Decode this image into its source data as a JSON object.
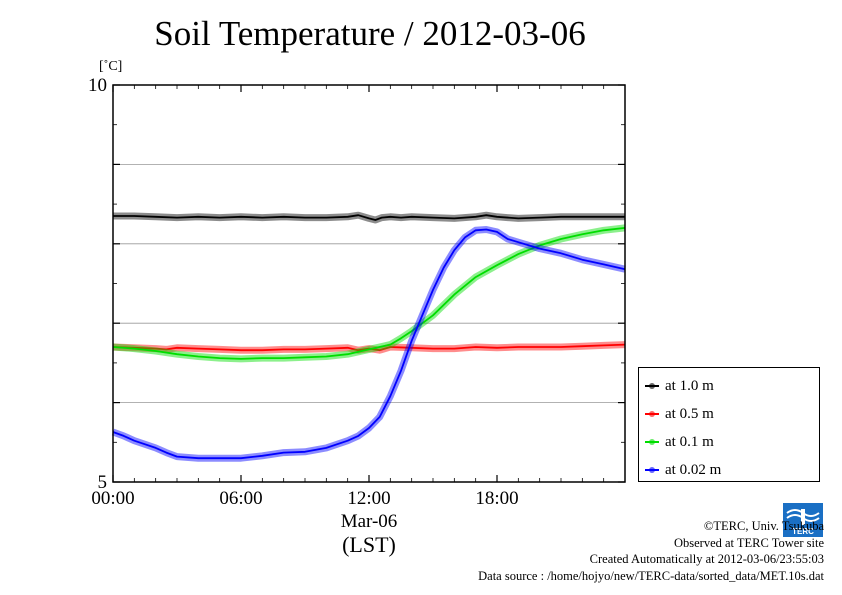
{
  "chart_data": {
    "type": "line",
    "title": "Soil Temperature / 2012-03-06",
    "ylabel": "[˚C]",
    "ylim": [
      5,
      10
    ],
    "y_ticks": [
      {
        "value": 10,
        "label": "10"
      },
      {
        "value": 5,
        "label": "5"
      }
    ],
    "y_grid": [
      6,
      7,
      8,
      9
    ],
    "xlim": [
      0,
      24
    ],
    "x_ticks": [
      {
        "value": 0,
        "label": "00:00"
      },
      {
        "value": 6,
        "label": "06:00"
      },
      {
        "value": 12,
        "label": "12:00"
      },
      {
        "value": 18,
        "label": "18:00"
      }
    ],
    "x_date_label": "Mar-06",
    "x_axis_label": "(LST)",
    "grid": "horizontal",
    "legend_position": "right",
    "series": [
      {
        "name": "at 1.0 m",
        "color": "#000000",
        "points": [
          [
            0,
            8.35
          ],
          [
            1,
            8.35
          ],
          [
            2,
            8.34
          ],
          [
            3,
            8.33
          ],
          [
            4,
            8.34
          ],
          [
            5,
            8.33
          ],
          [
            6,
            8.34
          ],
          [
            7,
            8.33
          ],
          [
            8,
            8.34
          ],
          [
            9,
            8.33
          ],
          [
            10,
            8.33
          ],
          [
            11,
            8.34
          ],
          [
            11.5,
            8.36
          ],
          [
            12,
            8.32
          ],
          [
            12.3,
            8.3
          ],
          [
            12.6,
            8.33
          ],
          [
            13,
            8.34
          ],
          [
            13.5,
            8.33
          ],
          [
            14,
            8.34
          ],
          [
            15,
            8.33
          ],
          [
            16,
            8.32
          ],
          [
            17,
            8.34
          ],
          [
            17.5,
            8.36
          ],
          [
            18,
            8.34
          ],
          [
            19,
            8.32
          ],
          [
            20,
            8.33
          ],
          [
            21,
            8.34
          ],
          [
            22,
            8.34
          ],
          [
            23,
            8.34
          ],
          [
            24,
            8.34
          ]
        ]
      },
      {
        "name": "at 0.5 m",
        "color": "#ff0000",
        "points": [
          [
            0,
            6.7
          ],
          [
            1,
            6.69
          ],
          [
            2,
            6.68
          ],
          [
            2.5,
            6.67
          ],
          [
            3,
            6.69
          ],
          [
            4,
            6.68
          ],
          [
            5,
            6.67
          ],
          [
            6,
            6.66
          ],
          [
            7,
            6.66
          ],
          [
            8,
            6.67
          ],
          [
            9,
            6.67
          ],
          [
            10,
            6.68
          ],
          [
            11,
            6.69
          ],
          [
            11.5,
            6.66
          ],
          [
            12,
            6.68
          ],
          [
            12.5,
            6.66
          ],
          [
            13,
            6.7
          ],
          [
            14,
            6.69
          ],
          [
            15,
            6.68
          ],
          [
            16,
            6.68
          ],
          [
            17,
            6.7
          ],
          [
            18,
            6.69
          ],
          [
            19,
            6.7
          ],
          [
            20,
            6.7
          ],
          [
            21,
            6.7
          ],
          [
            22,
            6.71
          ],
          [
            23,
            6.72
          ],
          [
            24,
            6.73
          ]
        ]
      },
      {
        "name": "at 0.1 m",
        "color": "#00dd00",
        "points": [
          [
            0,
            6.7
          ],
          [
            1,
            6.68
          ],
          [
            2,
            6.65
          ],
          [
            3,
            6.61
          ],
          [
            4,
            6.58
          ],
          [
            5,
            6.56
          ],
          [
            6,
            6.55
          ],
          [
            7,
            6.56
          ],
          [
            8,
            6.56
          ],
          [
            9,
            6.57
          ],
          [
            10,
            6.58
          ],
          [
            11,
            6.61
          ],
          [
            12,
            6.67
          ],
          [
            13,
            6.73
          ],
          [
            13.5,
            6.81
          ],
          [
            14,
            6.9
          ],
          [
            15,
            7.1
          ],
          [
            16,
            7.36
          ],
          [
            17,
            7.58
          ],
          [
            18,
            7.73
          ],
          [
            19,
            7.87
          ],
          [
            20,
            7.98
          ],
          [
            21,
            8.06
          ],
          [
            22,
            8.12
          ],
          [
            23,
            8.17
          ],
          [
            24,
            8.2
          ]
        ]
      },
      {
        "name": "at 0.02 m",
        "color": "#0000ff",
        "points": [
          [
            0,
            5.63
          ],
          [
            0.5,
            5.58
          ],
          [
            1,
            5.52
          ],
          [
            2,
            5.43
          ],
          [
            2.5,
            5.37
          ],
          [
            3,
            5.32
          ],
          [
            4,
            5.3
          ],
          [
            5,
            5.3
          ],
          [
            6,
            5.3
          ],
          [
            7,
            5.33
          ],
          [
            8,
            5.37
          ],
          [
            9,
            5.38
          ],
          [
            10,
            5.43
          ],
          [
            11,
            5.52
          ],
          [
            11.5,
            5.58
          ],
          [
            12,
            5.68
          ],
          [
            12.5,
            5.82
          ],
          [
            13,
            6.08
          ],
          [
            13.5,
            6.4
          ],
          [
            14,
            6.78
          ],
          [
            14.5,
            7.1
          ],
          [
            15,
            7.42
          ],
          [
            15.5,
            7.7
          ],
          [
            16,
            7.92
          ],
          [
            16.5,
            8.08
          ],
          [
            17,
            8.17
          ],
          [
            17.5,
            8.18
          ],
          [
            18,
            8.15
          ],
          [
            18.5,
            8.06
          ],
          [
            19,
            8.02
          ],
          [
            20,
            7.94
          ],
          [
            21,
            7.88
          ],
          [
            22,
            7.8
          ],
          [
            23,
            7.74
          ],
          [
            24,
            7.68
          ]
        ]
      }
    ]
  },
  "footer": {
    "copyright": "©TERC, Univ. Tsukuba",
    "site": "Observed at TERC Tower site",
    "created": "Created Automatically at 2012-03-06/23:55:03",
    "source": "Data source : /home/hojyo/new/TERC-data/sorted_data/MET.10s.dat"
  },
  "logo": {
    "text": "TERC",
    "color": "#1a6fc4"
  }
}
